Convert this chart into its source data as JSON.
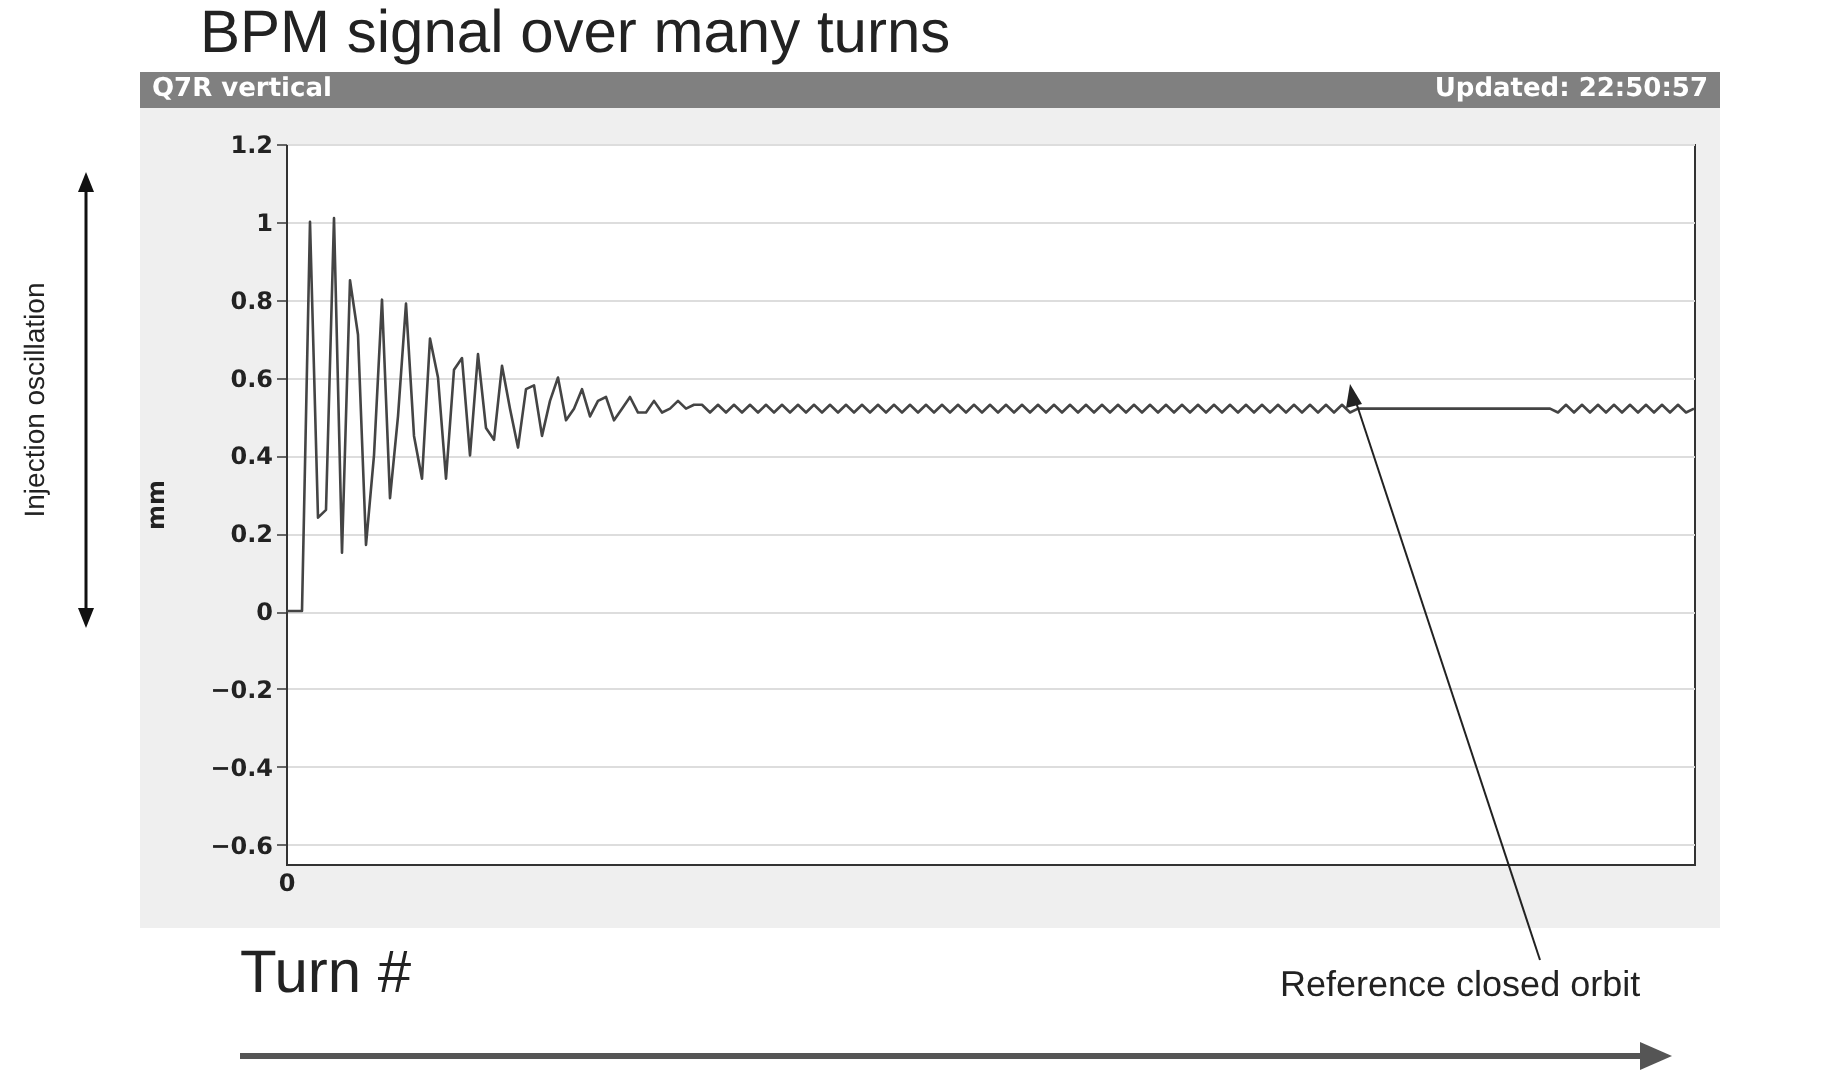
{
  "chart_data": {
    "type": "line",
    "title": "BPM signal over many turns",
    "subtitle": "Q7R vertical",
    "xlabel": "Turn #",
    "ylabel": "mm",
    "annotations": [
      "Updated: 22:50:57",
      "Injection oscillation",
      "Reference closed orbit"
    ],
    "categories": [
      "0",
      null,
      null,
      null,
      null,
      null,
      null,
      null,
      null,
      null,
      null,
      null,
      null,
      null,
      null,
      null,
      null,
      null,
      null,
      null,
      null,
      null,
      null,
      null,
      null,
      null,
      null,
      null,
      null,
      null,
      null,
      null,
      null,
      null,
      null,
      null,
      null,
      null,
      null,
      null,
      null,
      null,
      null,
      null,
      null,
      null,
      null,
      null,
      null,
      null,
      null,
      null,
      null,
      null,
      null,
      null,
      null,
      null,
      null,
      null,
      null,
      null,
      null,
      null,
      null,
      null,
      null,
      null,
      null,
      null,
      null,
      null,
      null,
      null,
      null,
      null,
      null,
      null,
      null,
      null,
      null,
      null,
      null,
      null,
      null,
      null,
      null,
      null,
      null,
      null,
      null,
      null,
      null,
      null,
      null,
      null,
      null,
      null,
      null,
      null,
      null,
      null,
      null,
      null,
      null,
      null,
      null,
      null,
      null,
      null,
      null,
      null,
      null,
      null,
      null,
      null,
      null,
      null,
      null,
      null,
      null,
      null,
      null,
      null,
      null,
      null,
      null,
      null,
      null,
      null,
      null,
      null,
      null,
      null,
      null,
      null,
      null,
      null,
      null,
      null,
      null,
      null,
      null,
      null,
      null,
      null,
      null,
      null,
      null,
      null,
      null,
      null,
      null,
      null,
      null,
      null,
      null,
      null,
      null,
      null,
      null,
      null,
      null,
      null,
      null,
      null,
      null,
      null,
      null,
      null,
      null,
      null,
      null,
      null,
      null,
      null,
      null
    ],
    "series": [
      {
        "color": "#444444",
        "values": [
          0,
          0,
          0,
          1.0,
          0.24,
          0.26,
          1.01,
          0.15,
          0.85,
          0.71,
          0.17,
          0.4,
          0.8,
          0.29,
          0.5,
          0.79,
          0.45,
          0.34,
          0.7,
          0.6,
          0.34,
          0.62,
          0.65,
          0.4,
          0.66,
          0.47,
          0.44,
          0.63,
          0.52,
          0.42,
          0.57,
          0.58,
          0.45,
          0.54,
          0.6,
          0.49,
          0.52,
          0.57,
          0.5,
          0.54,
          0.55,
          0.49,
          0.52,
          0.55,
          0.51,
          0.51,
          0.54,
          0.51,
          0.52,
          0.54,
          0.52,
          0.53,
          0.53,
          0.51,
          0.53,
          0.51,
          0.53,
          0.51,
          0.53,
          0.51,
          0.53,
          0.51,
          0.53,
          0.51,
          0.53,
          0.51,
          0.53,
          0.51,
          0.53,
          0.51,
          0.53,
          0.51,
          0.53,
          0.51,
          0.53,
          0.51,
          0.53,
          0.51,
          0.53,
          0.51,
          0.53,
          0.51,
          0.53,
          0.51,
          0.53,
          0.51,
          0.53,
          0.51,
          0.53,
          0.51,
          0.53,
          0.51,
          0.53,
          0.51,
          0.53,
          0.51,
          0.53,
          0.51,
          0.53,
          0.51,
          0.53,
          0.51,
          0.53,
          0.51,
          0.53,
          0.51,
          0.53,
          0.51,
          0.53,
          0.51,
          0.53,
          0.51,
          0.53,
          0.51,
          0.53,
          0.51,
          0.53,
          0.51,
          0.53,
          0.51,
          0.53,
          0.51,
          0.53,
          0.51,
          0.53,
          0.51,
          0.53,
          0.51,
          0.53,
          0.51,
          0.53,
          0.51,
          0.53,
          0.51,
          0.52,
          0.52,
          0.52,
          0.52,
          0.52,
          0.52,
          0.52,
          0.52,
          0.52,
          0.52,
          0.52,
          0.52,
          0.52,
          0.52,
          0.52,
          0.52,
          0.52,
          0.52,
          0.52,
          0.52,
          0.52,
          0.52,
          0.52,
          0.52,
          0.52,
          0.51,
          0.53,
          0.51,
          0.53,
          0.51,
          0.53,
          0.51,
          0.53,
          0.51,
          0.53,
          0.51,
          0.53,
          0.51,
          0.53,
          0.51,
          0.53,
          0.51,
          0.52
        ]
      }
    ],
    "ylim": [
      -0.65,
      1.2
    ],
    "yticks": [
      -0.6,
      -0.4,
      -0.2,
      0,
      0.2,
      0.4,
      0.6,
      0.8,
      1,
      1.2
    ],
    "grid": "y"
  }
}
